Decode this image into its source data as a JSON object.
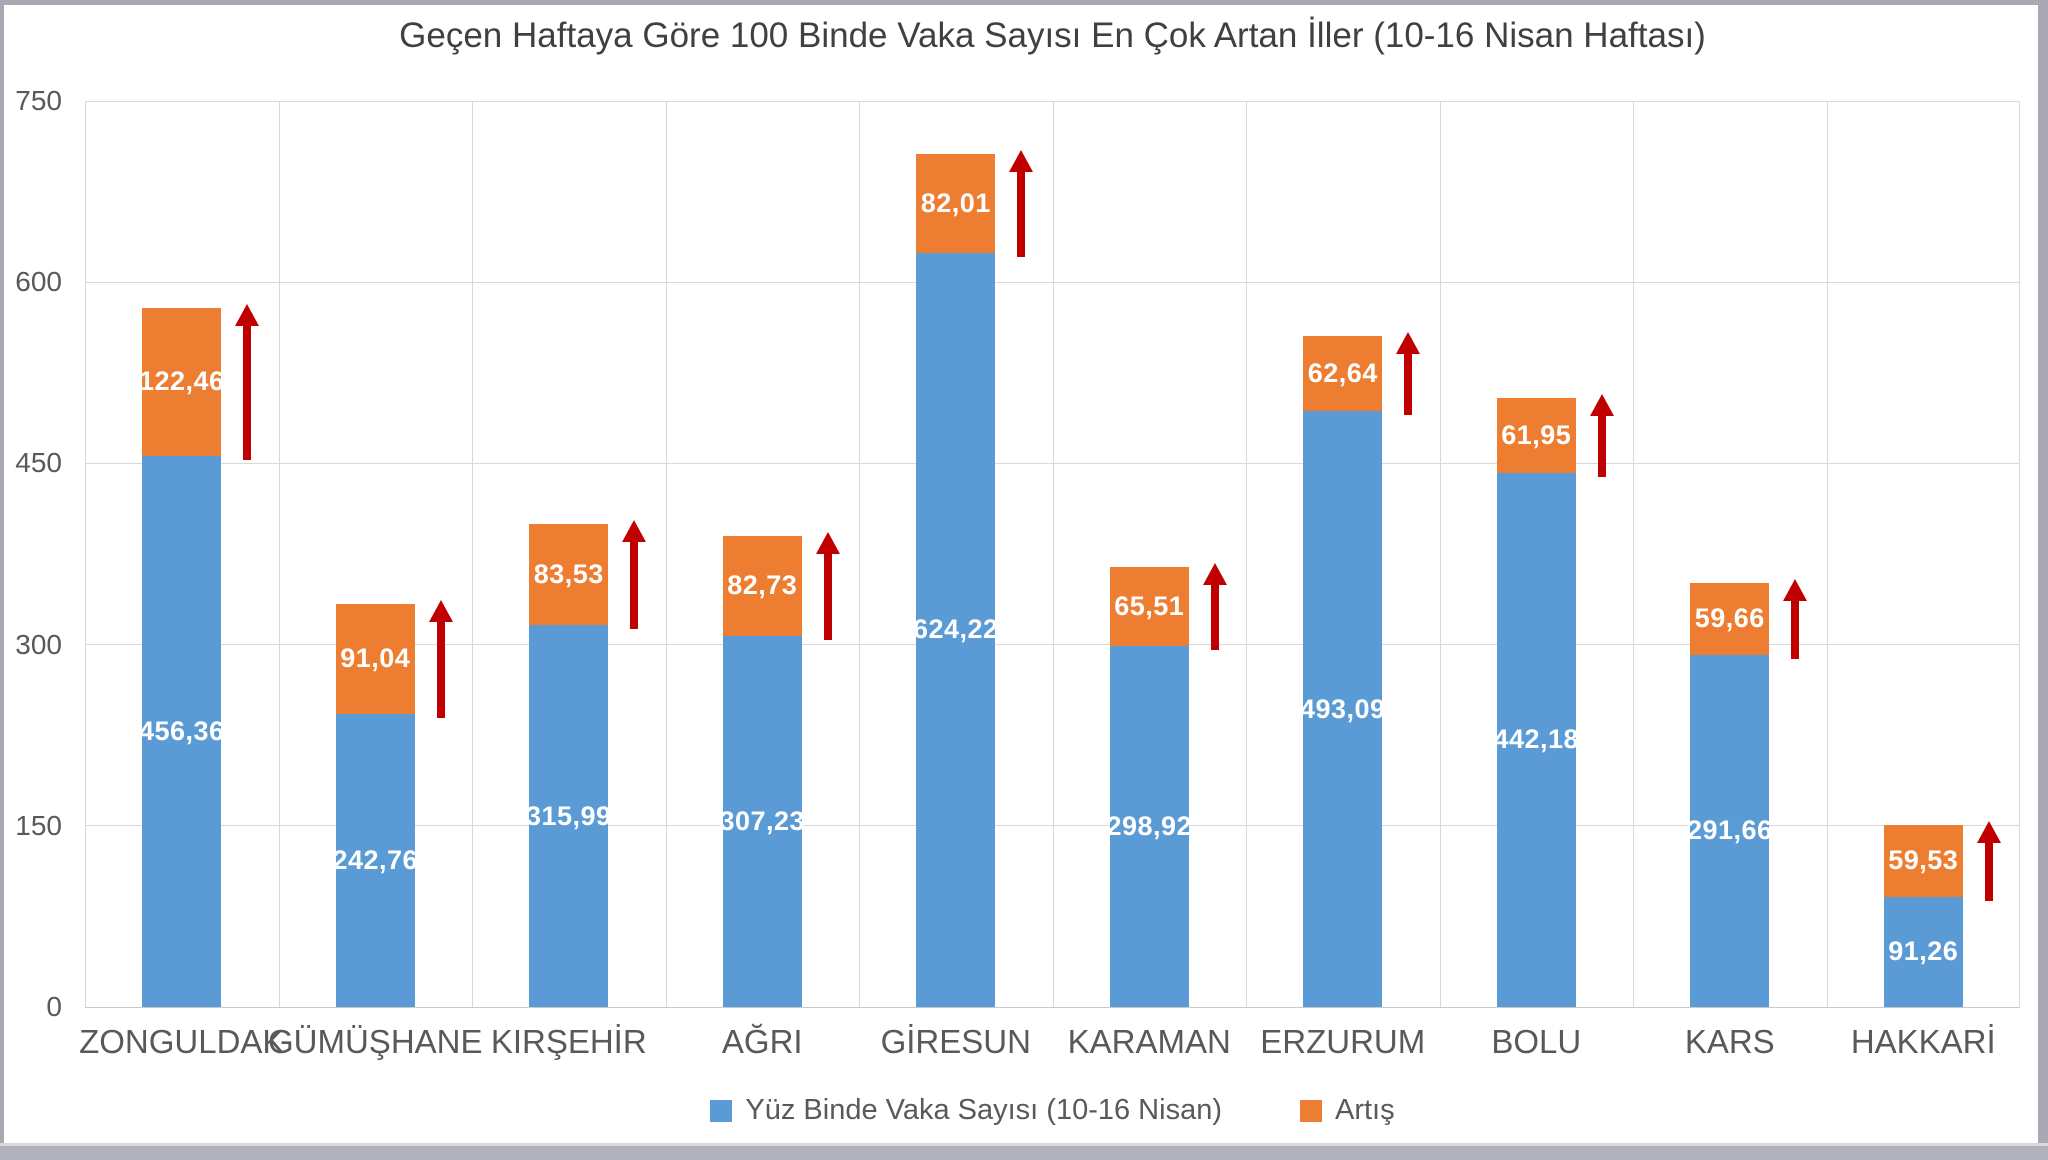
{
  "chart_data": {
    "type": "bar",
    "stacked": true,
    "title": "Geçen Haftaya Göre 100 Binde Vaka Sayısı En Çok Artan İller (10-16 Nisan Haftası)",
    "categories": [
      "ZONGULDAK",
      "GÜMÜŞHANE",
      "KIRŞEHİR",
      "AĞRI",
      "GİRESUN",
      "KARAMAN",
      "ERZURUM",
      "BOLU",
      "KARS",
      "HAKKARİ"
    ],
    "series": [
      {
        "name": "Yüz Binde Vaka Sayısı (10-16 Nisan)",
        "color": "#5B9BD5",
        "values": [
          456.36,
          242.76,
          315.99,
          307.23,
          624.22,
          298.92,
          493.09,
          442.18,
          291.66,
          91.26
        ]
      },
      {
        "name": "Artış",
        "color": "#ED7D31",
        "values": [
          122.46,
          91.04,
          83.53,
          82.73,
          82.01,
          65.51,
          62.64,
          61.95,
          59.66,
          59.53
        ]
      }
    ],
    "y_axis": {
      "min": 0,
      "max": 750,
      "ticks": [
        0,
        150,
        300,
        450,
        600,
        750
      ]
    },
    "grid": true,
    "legend_position": "bottom",
    "value_label_color": "#FFFFFF",
    "decimal_separator": ",",
    "arrow_color": "#C00000"
  }
}
